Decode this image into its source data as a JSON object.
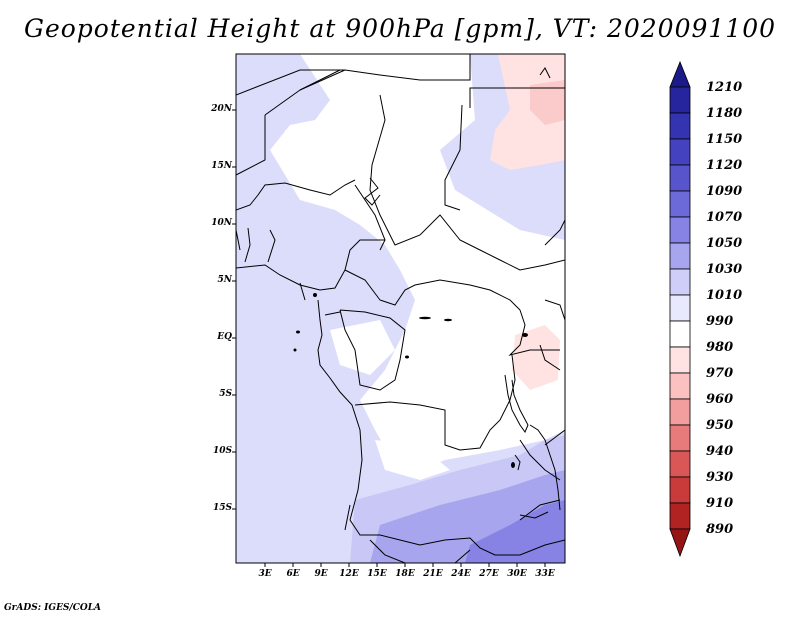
{
  "title": "Geopotential Height at 900hPa [gpm], VT: 2020091100",
  "credit": "GrADS: IGES/COLA",
  "map": {
    "lat_labels": [
      "20N",
      "15N",
      "10N",
      "5N",
      "EQ",
      "5S",
      "10S",
      "15S"
    ],
    "lon_labels": [
      "3E",
      "6E",
      "9E",
      "12E",
      "15E",
      "18E",
      "21E",
      "24E",
      "27E",
      "30E",
      "33E"
    ]
  },
  "colorbar": {
    "levels": [
      "1210",
      "1180",
      "1150",
      "1120",
      "1090",
      "1070",
      "1050",
      "1030",
      "1010",
      "990",
      "980",
      "970",
      "960",
      "950",
      "940",
      "930",
      "910",
      "890"
    ],
    "colors": [
      "#1a1a8a",
      "#27259e",
      "#3433b0",
      "#4442bf",
      "#5855cc",
      "#6c69d8",
      "#8683e4",
      "#a7a5ee",
      "#cfcef8",
      "#e9e9fd",
      "#ffffff",
      "#ffe3e3",
      "#fbc1c1",
      "#f39e9e",
      "#e77a7a",
      "#da5757",
      "#c93a3a",
      "#b12222",
      "#951515"
    ]
  }
}
